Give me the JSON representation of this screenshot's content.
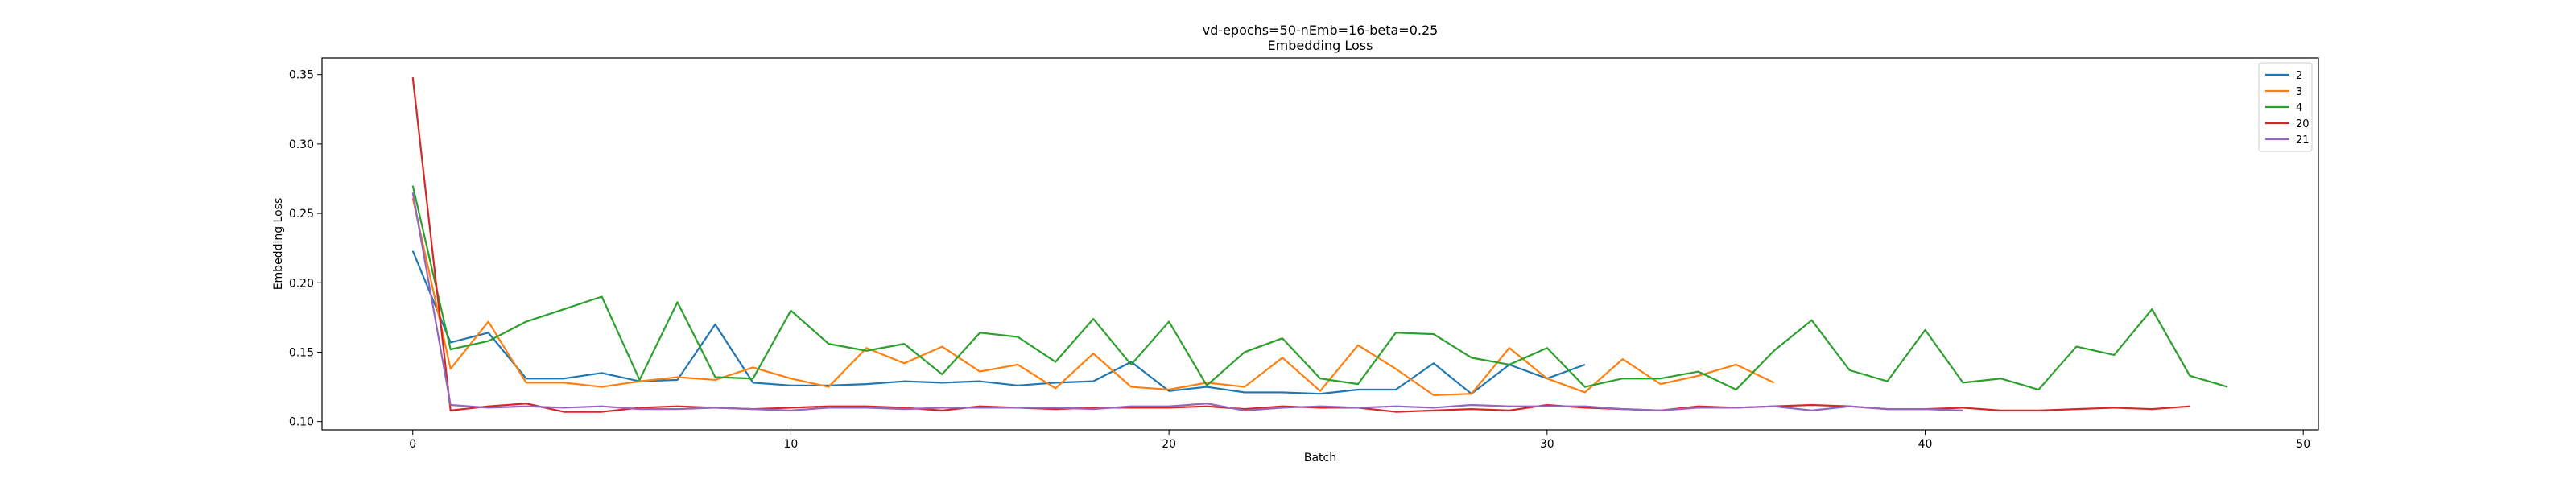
{
  "chart_data": {
    "type": "line",
    "title": "vd-epochs=50-nEmb=16-beta=0.25",
    "subtitle": "Embedding Loss",
    "xlabel": "Batch",
    "ylabel": "Embedding Loss",
    "xlim": [
      -2.4,
      50.4
    ],
    "ylim": [
      0.094,
      0.362
    ],
    "xticks": [
      0,
      10,
      20,
      30,
      40,
      50
    ],
    "yticks": [
      0.1,
      0.15,
      0.2,
      0.25,
      0.3,
      0.35
    ],
    "xtick_labels": [
      "0",
      "10",
      "20",
      "30",
      "40",
      "50"
    ],
    "ytick_labels": [
      "0.10",
      "0.15",
      "0.20",
      "0.25",
      "0.30",
      "0.35"
    ],
    "grid": false,
    "legend_position": "top-right",
    "series": [
      {
        "name": "2",
        "color": "#1f77b4",
        "values": [
          0.223,
          0.157,
          0.164,
          0.131,
          0.131,
          0.135,
          0.129,
          0.13,
          0.17,
          0.128,
          0.126,
          0.126,
          0.127,
          0.129,
          0.128,
          0.129,
          0.126,
          0.128,
          0.129,
          0.143,
          0.122,
          0.125,
          0.121,
          0.121,
          0.12,
          0.123,
          0.123,
          0.142,
          0.12,
          0.141,
          0.131,
          0.141
        ]
      },
      {
        "name": "3",
        "color": "#ff7f0e",
        "values": [
          0.261,
          0.138,
          0.172,
          0.128,
          0.128,
          0.125,
          0.129,
          0.132,
          0.13,
          0.139,
          0.131,
          0.125,
          0.153,
          0.142,
          0.154,
          0.136,
          0.141,
          0.124,
          0.149,
          0.125,
          0.123,
          0.128,
          0.125,
          0.146,
          0.122,
          0.155,
          0.138,
          0.119,
          0.12,
          0.153,
          0.131,
          0.121,
          0.145,
          0.127,
          0.133,
          0.141,
          0.128
        ]
      },
      {
        "name": "4",
        "color": "#2ca02c",
        "values": [
          0.27,
          0.152,
          0.158,
          0.172,
          0.181,
          0.19,
          0.13,
          0.186,
          0.132,
          0.131,
          0.18,
          0.156,
          0.151,
          0.156,
          0.134,
          0.164,
          0.161,
          0.143,
          0.174,
          0.141,
          0.172,
          0.126,
          0.15,
          0.16,
          0.131,
          0.127,
          0.164,
          0.163,
          0.146,
          0.141,
          0.153,
          0.125,
          0.131,
          0.131,
          0.136,
          0.123,
          0.151,
          0.173,
          0.137,
          0.129,
          0.166,
          0.128,
          0.131,
          0.123,
          0.154,
          0.148,
          0.181,
          0.133,
          0.125
        ]
      },
      {
        "name": "20",
        "color": "#d62728",
        "values": [
          0.348,
          0.108,
          0.111,
          0.113,
          0.107,
          0.107,
          0.11,
          0.111,
          0.11,
          0.109,
          0.11,
          0.111,
          0.111,
          0.11,
          0.108,
          0.111,
          0.11,
          0.109,
          0.11,
          0.11,
          0.11,
          0.111,
          0.109,
          0.111,
          0.11,
          0.11,
          0.107,
          0.108,
          0.109,
          0.108,
          0.112,
          0.11,
          0.109,
          0.108,
          0.111,
          0.11,
          0.111,
          0.112,
          0.111,
          0.109,
          0.109,
          0.11,
          0.108,
          0.108,
          0.109,
          0.11,
          0.109,
          0.111
        ]
      },
      {
        "name": "21",
        "color": "#9467bd",
        "values": [
          0.265,
          0.112,
          0.11,
          0.111,
          0.11,
          0.111,
          0.109,
          0.109,
          0.11,
          0.109,
          0.108,
          0.11,
          0.11,
          0.109,
          0.11,
          0.11,
          0.11,
          0.11,
          0.109,
          0.111,
          0.111,
          0.113,
          0.108,
          0.11,
          0.111,
          0.11,
          0.111,
          0.11,
          0.112,
          0.111,
          0.111,
          0.111,
          0.109,
          0.108,
          0.11,
          0.11,
          0.111,
          0.108,
          0.111,
          0.109,
          0.109,
          0.108
        ]
      }
    ]
  }
}
